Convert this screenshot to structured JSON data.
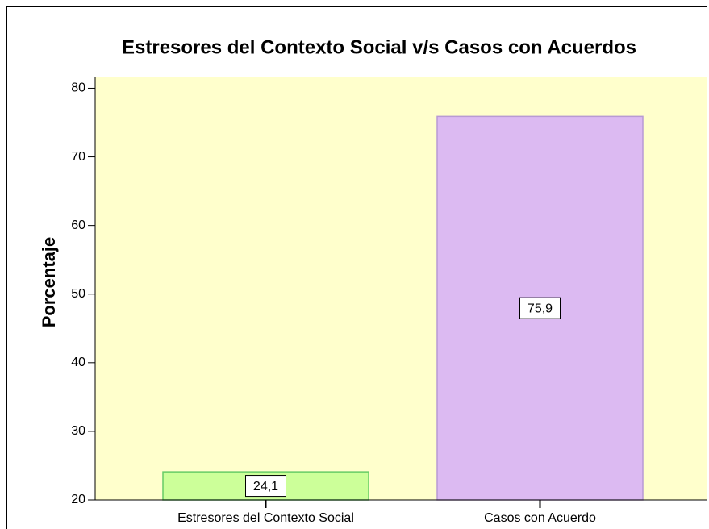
{
  "chart_data": {
    "type": "bar",
    "title": "Estresores del Contexto Social v/s Casos con Acuerdos",
    "y_label": "Porcentaje",
    "categories": [
      "Estresores del Contexto Social",
      "Casos con Acuerdo"
    ],
    "values": [
      24.1,
      75.9
    ],
    "value_labels": [
      "24,1",
      "75,9"
    ],
    "colors": [
      "#ccff99",
      "#dcbaf2"
    ],
    "ylim": [
      20,
      81.7
    ],
    "yticks": [
      20,
      30,
      40,
      50,
      60,
      70,
      80
    ],
    "grid": false
  }
}
